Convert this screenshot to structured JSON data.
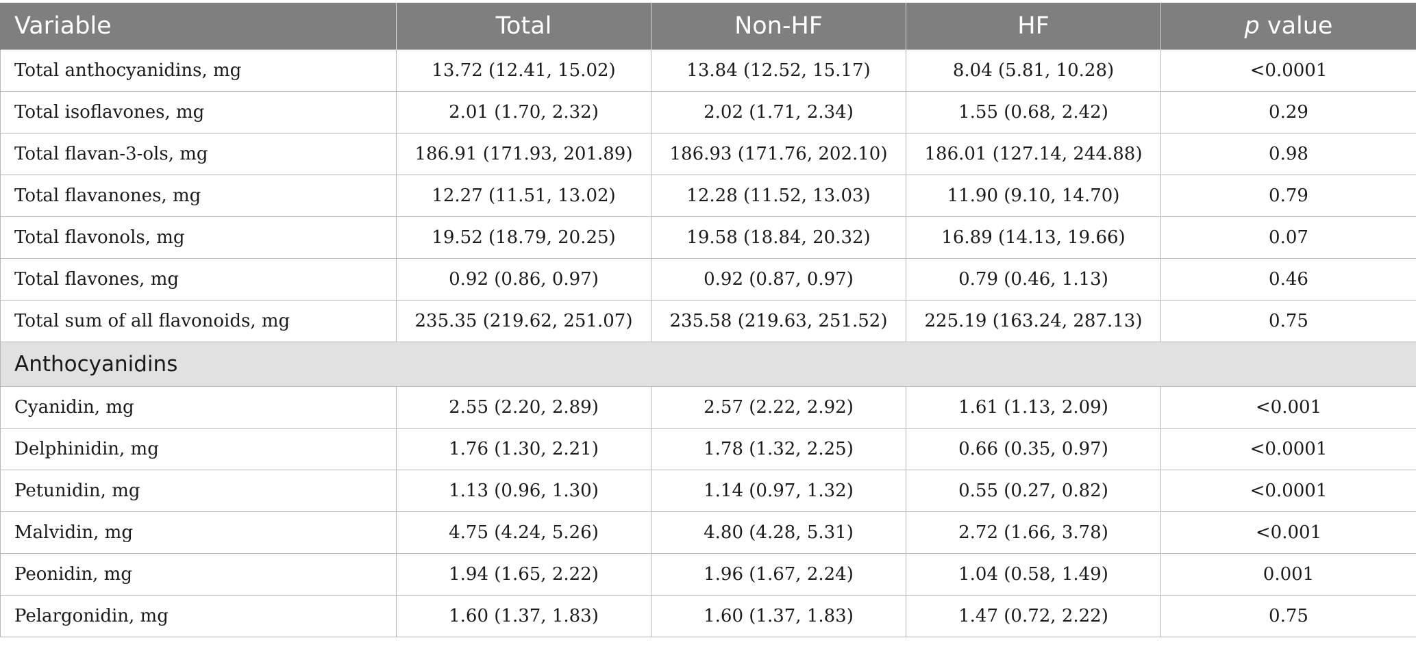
{
  "header": {
    "variable": "Variable",
    "total": "Total",
    "non_hf": "Non-HF",
    "hf": "HF",
    "p_italic": "p",
    "p_rest": " value"
  },
  "rows_main": [
    {
      "variable": "Total anthocyanidins, mg",
      "total": "13.72 (12.41, 15.02)",
      "non_hf": "13.84 (12.52, 15.17)",
      "hf": "8.04 (5.81, 10.28)",
      "p": "<0.0001"
    },
    {
      "variable": "Total isoflavones, mg",
      "total": "2.01 (1.70, 2.32)",
      "non_hf": "2.02 (1.71, 2.34)",
      "hf": "1.55 (0.68, 2.42)",
      "p": "0.29"
    },
    {
      "variable": "Total flavan-3-ols, mg",
      "total": "186.91 (171.93, 201.89)",
      "non_hf": "186.93 (171.76, 202.10)",
      "hf": "186.01 (127.14, 244.88)",
      "p": "0.98"
    },
    {
      "variable": "Total flavanones, mg",
      "total": "12.27 (11.51, 13.02)",
      "non_hf": "12.28 (11.52, 13.03)",
      "hf": "11.90 (9.10, 14.70)",
      "p": "0.79"
    },
    {
      "variable": "Total flavonols, mg",
      "total": "19.52 (18.79, 20.25)",
      "non_hf": "19.58 (18.84, 20.32)",
      "hf": "16.89 (14.13, 19.66)",
      "p": "0.07"
    },
    {
      "variable": "Total flavones, mg",
      "total": "0.92 (0.86, 0.97)",
      "non_hf": "0.92 (0.87, 0.97)",
      "hf": "0.79 (0.46, 1.13)",
      "p": "0.46"
    },
    {
      "variable": "Total sum of all flavonoids, mg",
      "total": "235.35 (219.62, 251.07)",
      "non_hf": "235.58 (219.63, 251.52)",
      "hf": "225.19 (163.24, 287.13)",
      "p": "0.75"
    }
  ],
  "section_label": "Anthocyanidins",
  "rows_section": [
    {
      "variable": "Cyanidin, mg",
      "total": "2.55 (2.20, 2.89)",
      "non_hf": "2.57 (2.22, 2.92)",
      "hf": "1.61 (1.13, 2.09)",
      "p": "<0.001"
    },
    {
      "variable": "Delphinidin, mg",
      "total": "1.76 (1.30, 2.21)",
      "non_hf": "1.78 (1.32, 2.25)",
      "hf": "0.66 (0.35, 0.97)",
      "p": "<0.0001"
    },
    {
      "variable": "Petunidin, mg",
      "total": "1.13 (0.96, 1.30)",
      "non_hf": "1.14 (0.97, 1.32)",
      "hf": "0.55 (0.27, 0.82)",
      "p": "<0.0001"
    },
    {
      "variable": "Malvidin, mg",
      "total": "4.75 (4.24, 5.26)",
      "non_hf": "4.80 (4.28, 5.31)",
      "hf": "2.72 (1.66, 3.78)",
      "p": "<0.001"
    },
    {
      "variable": "Peonidin, mg",
      "total": "1.94 (1.65, 2.22)",
      "non_hf": "1.96 (1.67, 2.24)",
      "hf": "1.04 (0.58, 1.49)",
      "p": "0.001"
    },
    {
      "variable": "Pelargonidin, mg",
      "total": "1.60 (1.37, 1.83)",
      "non_hf": "1.60 (1.37, 1.83)",
      "hf": "1.47 (0.72, 2.22)",
      "p": "0.75"
    }
  ]
}
